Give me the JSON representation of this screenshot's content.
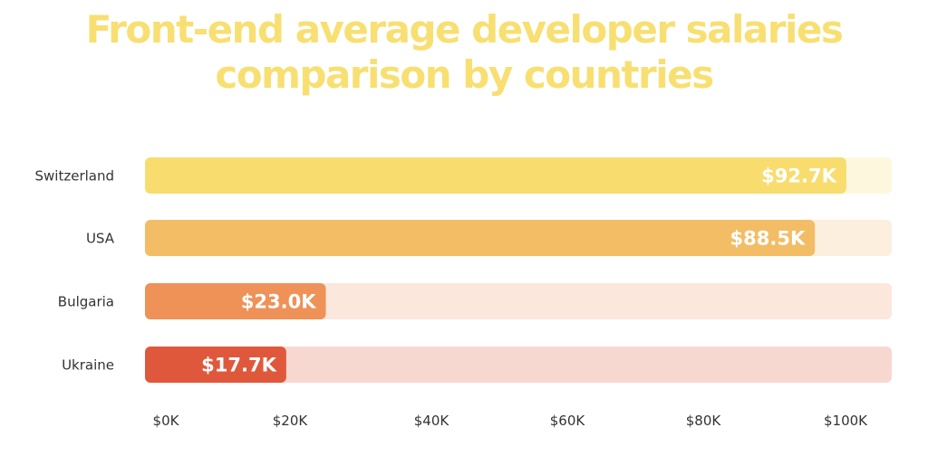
{
  "chart_data": {
    "type": "bar",
    "orientation": "horizontal",
    "title_lines": [
      "Front-end average developer salaries",
      "comparison by countries"
    ],
    "categories": [
      "Switzerland",
      "USA",
      "Bulgaria",
      "Ukraine"
    ],
    "values": [
      92.7,
      88.5,
      23.0,
      17.7
    ],
    "value_labels": [
      "$92.7K",
      "$88.5K",
      "$23.0K",
      "$17.7K"
    ],
    "bar_colors": [
      "#f8dc6e",
      "#f3bd66",
      "#ee9258",
      "#e0583b"
    ],
    "track_colors": [
      "#fdf7de",
      "#fcefde",
      "#fce7dc",
      "#f7d8d1"
    ],
    "xlim": [
      0,
      100
    ],
    "ticks": [
      0,
      20,
      40,
      60,
      80,
      100
    ],
    "tick_labels": [
      "$0K",
      "$20K",
      "$40K",
      "$60K",
      "$80K",
      "$100K"
    ],
    "grid": false,
    "legend": false
  }
}
